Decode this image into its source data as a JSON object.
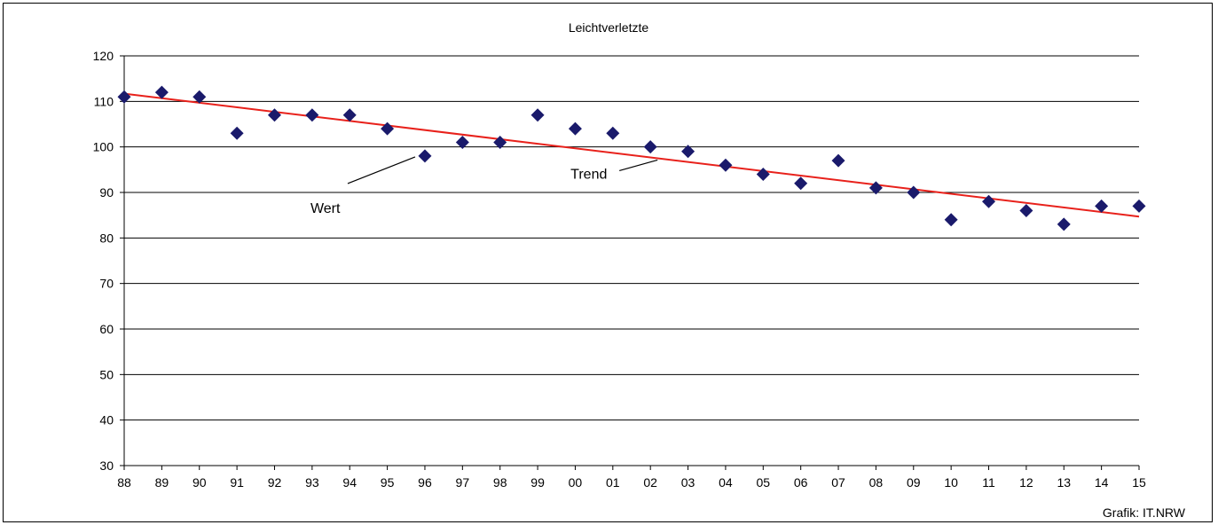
{
  "chart_data": {
    "type": "scatter",
    "title": "Leichtverletzte",
    "xlabel": "",
    "ylabel": "",
    "ylim": [
      30,
      120
    ],
    "y_ticks": [
      30,
      40,
      50,
      60,
      70,
      80,
      90,
      100,
      110,
      120
    ],
    "x_tick_labels": [
      "88",
      "89",
      "90",
      "91",
      "92",
      "93",
      "94",
      "95",
      "96",
      "97",
      "98",
      "99",
      "00",
      "01",
      "02",
      "03",
      "04",
      "05",
      "06",
      "07",
      "08",
      "09",
      "10",
      "11",
      "12",
      "13",
      "14",
      "15"
    ],
    "grid": true,
    "series": [
      {
        "name": "Wert",
        "marker": "diamond",
        "color": "#1a1a6b",
        "values": [
          111,
          112,
          111,
          103,
          107,
          107,
          107,
          104,
          98,
          101,
          101,
          107,
          104,
          103,
          100,
          99,
          96,
          94,
          92,
          97,
          91,
          90,
          84,
          88,
          86,
          83,
          87,
          87
        ]
      },
      {
        "name": "Trend",
        "type": "line",
        "color": "#e8211b",
        "start": {
          "x": "88",
          "y": 111.7
        },
        "end": {
          "x": "15",
          "y": 84.7
        }
      }
    ],
    "annotations": [
      {
        "text": "Wert",
        "points_to": "96"
      },
      {
        "text": "Trend",
        "points_to": "02"
      }
    ],
    "source": "Grafik: IT.NRW"
  }
}
